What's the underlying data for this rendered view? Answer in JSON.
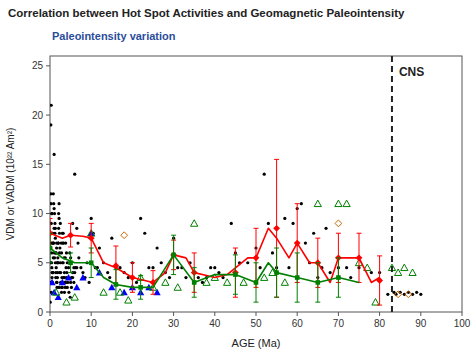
{
  "chart_data": {
    "type": "scatter",
    "title": "Correlation between Hot Spot Activities and Geomagnetic Paleointensity",
    "subtitle": "Paleointensity  variation",
    "x_label": "AGE (Ma)",
    "y_label": "VDM or VADM (10²² Am²)",
    "xlim": [
      0,
      100
    ],
    "ylim": [
      0,
      26
    ],
    "xticks": [
      0,
      10,
      20,
      30,
      40,
      50,
      60,
      70,
      80,
      90,
      100
    ],
    "yticks": [
      0,
      5,
      10,
      15,
      20,
      25
    ],
    "grid": false,
    "series": [
      {
        "type": "scatter",
        "marker": "circle",
        "color": "black",
        "x": [
          0.05,
          0.1,
          0.15,
          0.2,
          0.25,
          0.3,
          0.35,
          0.4,
          0.45,
          0.5,
          0.6,
          0.7,
          0.8,
          0.9,
          1.0,
          1.1,
          1.2,
          1.3,
          1.4,
          1.5,
          1.6,
          1.7,
          1.8,
          1.9,
          2.0,
          2.1,
          2.2,
          2.3,
          2.4,
          2.5,
          2.6,
          2.7,
          2.8,
          2.9,
          3.0,
          3.1,
          3.2,
          3.3,
          3.4,
          3.5,
          3.6,
          3.7,
          3.8,
          3.9,
          4.0,
          0.3,
          0.5,
          0.7,
          1.0,
          1.3,
          1.6,
          2.0,
          2.3,
          2.6,
          3.0,
          3.3,
          3.7,
          4.1,
          4.3,
          4.6,
          4.9,
          5.2,
          5.5,
          5.8,
          0.2,
          0.4,
          0.6,
          0.8,
          1.1,
          1.4,
          1.7,
          2.2,
          2.8,
          3.5,
          4.2,
          5.0,
          5.5,
          6.0,
          6.5
        ],
        "values": [
          1.0,
          3.0,
          5.0,
          8.0,
          11.0,
          9.0,
          7.0,
          6.0,
          4.5,
          3.5,
          3.0,
          4.0,
          5.5,
          7.0,
          8.5,
          10.0,
          9.0,
          7.5,
          6.0,
          4.5,
          3.0,
          2.5,
          3.5,
          5.0,
          7.0,
          8.5,
          9.5,
          8.0,
          6.5,
          5.0,
          4.0,
          3.0,
          2.5,
          3.5,
          5.0,
          7.0,
          8.0,
          7.0,
          5.5,
          4.0,
          3.0,
          2.5,
          3.0,
          4.5,
          6.0,
          2.0,
          4.0,
          7.0,
          10.5,
          8.5,
          6.5,
          5.0,
          4.0,
          3.0,
          2.5,
          3.5,
          5.5,
          4.0,
          3.0,
          2.0,
          1.5,
          2.5,
          4.0,
          3.0,
          12.0,
          10.0,
          8.0,
          7.0,
          5.5,
          4.0,
          3.0,
          2.5,
          2.0,
          2.0,
          2.5,
          3.0,
          3.5,
          4.0,
          4.5
        ]
      },
      {
        "type": "scatter",
        "marker": "circle",
        "color": "black",
        "x": [
          0.1,
          0.2,
          0.3,
          0.4,
          0.5,
          0.6,
          0.7,
          0.8,
          0.9,
          1.0,
          1.1,
          1.2,
          1.3,
          1.4,
          1.5,
          1.6,
          1.7,
          1.8,
          1.9,
          2.0,
          2.1,
          2.2,
          2.3,
          2.5,
          2.7,
          2.8,
          3.0,
          3.2,
          3.5,
          3.8,
          4.0,
          4.2,
          4.5,
          4.8,
          5.0,
          5.2,
          5.5,
          5.8,
          6.0,
          6.2,
          6.5,
          6.8,
          7.0,
          7.5,
          8.0,
          8.5,
          9.0,
          9.5,
          10.0,
          10.5,
          11.0,
          11.5,
          12.0,
          13.0,
          14.0,
          14.5,
          15.0,
          16.0,
          17.0,
          18.0,
          19.0,
          20.0,
          21.0,
          22.0,
          23.0,
          24.0,
          25.0,
          26.0,
          27.0,
          28.0,
          29.0,
          30.0,
          31.0,
          32.0,
          33.0,
          34.0,
          35.0,
          36.0,
          37.0,
          38.0,
          39.0,
          40.0,
          41.0,
          42.0,
          44.0,
          45.0,
          46.0,
          48.0,
          50.0,
          51.0,
          52.0,
          53.0,
          54.0,
          55.0,
          57.0,
          58.0,
          59.0,
          60.0,
          61.0,
          62.0,
          63.0,
          64.0,
          65.0,
          66.0,
          67.0,
          68.0,
          70.0,
          72.0,
          73.0,
          75.0,
          78.0,
          80.0,
          82.0,
          83.5,
          84.0,
          85.0,
          86.0,
          87.0,
          88.0,
          89.0,
          90.0
        ],
        "values": [
          8.0,
          19.0,
          21.0,
          5.0,
          10.0,
          8.0,
          4.0,
          12.0,
          11.0,
          16.0,
          6.0,
          8.0,
          5.0,
          3.5,
          6.0,
          7.0,
          5.0,
          4.0,
          5.5,
          7.0,
          10.0,
          11.0,
          6.0,
          9.0,
          7.0,
          6.0,
          8.0,
          5.0,
          3.5,
          7.0,
          3.5,
          5.0,
          4.5,
          6.0,
          5.5,
          3.5,
          9.0,
          4.5,
          14.0,
          4.5,
          8.5,
          7.0,
          5.5,
          4.5,
          4.0,
          3.5,
          5.0,
          3.0,
          9.5,
          8.0,
          4.5,
          4.5,
          6.5,
          5.0,
          4.0,
          3.5,
          7.5,
          4.5,
          4.5,
          4.0,
          3.5,
          5.0,
          3.0,
          9.5,
          8.0,
          4.5,
          4.5,
          6.5,
          5.0,
          4.0,
          3.5,
          7.5,
          4.5,
          4.5,
          3.5,
          5.0,
          4.0,
          3.5,
          3.0,
          3.5,
          4.5,
          4.5,
          4.0,
          3.5,
          9.0,
          6.0,
          5.0,
          5.0,
          6.5,
          4.5,
          14.0,
          9.0,
          6.0,
          4.5,
          9.5,
          4.5,
          9.0,
          10.5,
          11.0,
          7.0,
          5.0,
          8.0,
          3.5,
          4.5,
          8.5,
          4.0,
          4.5,
          4.5,
          3.5,
          4.5,
          4.0,
          4.0,
          1.8,
          2.0,
          1.8,
          2.0,
          1.8,
          2.0,
          1.8,
          2.0,
          1.8
        ]
      },
      {
        "type": "scatter",
        "marker": "triangle",
        "color": "blue",
        "x": [
          0.5,
          1.0,
          2.0,
          3.0,
          4.5,
          6.5,
          8.0,
          10.0,
          12.0,
          15.0,
          18.0,
          20.0,
          22.0,
          24.0,
          26.0
        ],
        "values": [
          3.0,
          2.0,
          1.5,
          3.0,
          3.5,
          2.5,
          3.5,
          8.0,
          4.0,
          2.5,
          2.0,
          2.5,
          2.0,
          2.5,
          2.0
        ]
      },
      {
        "type": "scatter",
        "marker": "triangle-open",
        "color": "green",
        "x": [
          1.5,
          4.0,
          6.0,
          10.0,
          13.0,
          17.0,
          19.0,
          22.0,
          25.0,
          28.0,
          31.0,
          35.0,
          38.0,
          40.0,
          43.0,
          47.0,
          52.0,
          54.0,
          57.0,
          65.0,
          70.0,
          72.0,
          75.0,
          77.0,
          79.0,
          83.0,
          84.5,
          86.0,
          88.0
        ],
        "values": [
          2.0,
          1.0,
          1.5,
          8.0,
          2.0,
          2.0,
          1.2,
          3.5,
          2.5,
          3.0,
          2.5,
          9.0,
          3.0,
          3.5,
          3.0,
          3.0,
          3.5,
          4.0,
          3.0,
          11.0,
          11.0,
          11.0,
          5.0,
          4.5,
          1.0,
          4.5,
          4.0,
          4.5,
          4.0
        ]
      },
      {
        "type": "scatter",
        "marker": "diamond-open",
        "color": "#CC6600",
        "x": [
          18.0,
          70.0,
          84.5,
          87.0
        ],
        "values": [
          7.8,
          9.0,
          1.8,
          1.8
        ]
      },
      {
        "type": "line",
        "color": "red",
        "x": [
          0,
          3,
          5,
          8,
          10,
          13,
          16,
          20,
          25,
          28,
          30,
          33,
          35,
          38,
          40,
          43,
          48,
          50,
          53,
          55,
          58,
          60,
          63,
          65,
          68,
          70,
          73,
          75,
          78,
          80
        ],
        "values": [
          8.0,
          7.5,
          7.8,
          7.7,
          7.5,
          5.0,
          4.5,
          3.5,
          3.0,
          4.0,
          5.8,
          5.5,
          4.0,
          3.7,
          3.5,
          3.8,
          5.5,
          5.5,
          8.5,
          7.5,
          5.5,
          7.0,
          5.0,
          5.0,
          3.0,
          5.5,
          5.5,
          5.5,
          3.0,
          3.5
        ]
      },
      {
        "type": "scatter",
        "marker": "diamond",
        "color": "red",
        "x": [
          0,
          5,
          10,
          16,
          20,
          25,
          30,
          35,
          45,
          50,
          55,
          60,
          65,
          70,
          75,
          80
        ],
        "values": [
          8.0,
          7.8,
          7.5,
          4.7,
          3.5,
          3.0,
          5.8,
          4.0,
          4.0,
          5.5,
          8.5,
          7.0,
          5.0,
          5.5,
          5.5,
          3.2
        ],
        "error": [
          1.5,
          1.2,
          1.5,
          2.0,
          1.5,
          1.2,
          1.5,
          2.0,
          2.5,
          3.0,
          7.0,
          4.0,
          2.5,
          2.5,
          2.5,
          2.5
        ]
      },
      {
        "type": "line",
        "color": "green",
        "x": [
          0,
          3,
          6,
          10,
          13,
          16,
          20,
          25,
          30,
          35,
          40,
          45,
          50,
          53,
          55,
          60,
          65,
          70,
          75
        ],
        "values": [
          6.5,
          5.5,
          5.0,
          5.0,
          3.5,
          2.8,
          2.5,
          2.5,
          5.8,
          3.0,
          3.8,
          3.8,
          3.0,
          5.0,
          4.0,
          3.5,
          3.0,
          3.5,
          3.0
        ]
      },
      {
        "type": "scatter",
        "marker": "square",
        "color": "green",
        "x": [
          0,
          5,
          10,
          16,
          22,
          30,
          35,
          45,
          50,
          55,
          60,
          65,
          70
        ],
        "values": [
          6.5,
          5.0,
          5.0,
          2.8,
          2.5,
          5.8,
          3.0,
          3.8,
          3.0,
          4.0,
          3.5,
          3.0,
          3.5
        ],
        "error": [
          1.5,
          1.0,
          1.5,
          1.5,
          1.2,
          2.0,
          1.5,
          2.0,
          2.0,
          2.5,
          2.5,
          2.0,
          2.0
        ]
      }
    ],
    "annotations": [
      {
        "x": 83,
        "text": "CNS"
      }
    ]
  }
}
